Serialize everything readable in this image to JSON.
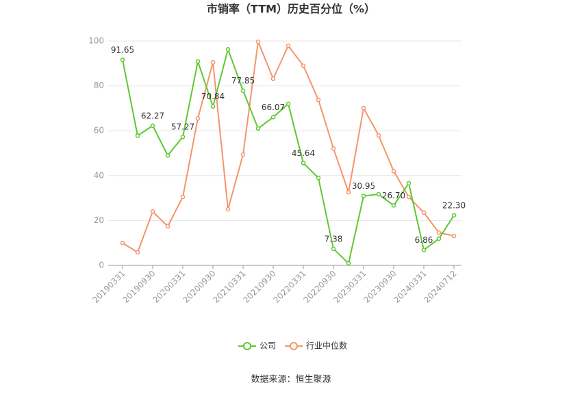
{
  "chart_data": {
    "type": "line",
    "title": "市销率（TTM）历史百分位（%）",
    "source": "数据来源：恒生聚源",
    "categories": [
      "20190331",
      null,
      "20190930",
      null,
      "20200331",
      null,
      "20200930",
      null,
      "20210331",
      null,
      "20210930",
      null,
      "20220331",
      null,
      "20220930",
      null,
      "20230331",
      null,
      "20230930",
      null,
      "20240331",
      null,
      "20240712"
    ],
    "series": [
      {
        "name": "公司",
        "color": "#5cc92f",
        "values": [
          91.65,
          57.8,
          62.27,
          49,
          57.27,
          90.9,
          70.84,
          96.3,
          77.85,
          61,
          66.07,
          72,
          45.64,
          39,
          7.38,
          0.9,
          30.95,
          31.7,
          26.7,
          36.6,
          6.86,
          11.9,
          22.3
        ],
        "value_labels": [
          "91.65",
          null,
          "62.27",
          null,
          "57.27",
          null,
          "70.84",
          null,
          "77.85",
          null,
          "66.07",
          null,
          "45.64",
          null,
          "7.38",
          null,
          "30.95",
          null,
          "26.70",
          null,
          "6.86",
          null,
          "22.30"
        ]
      },
      {
        "name": "行业中位数",
        "color": "#f5936b",
        "values": [
          10,
          5.8,
          24,
          17.4,
          30.5,
          65.5,
          90.5,
          25,
          49.4,
          99.7,
          83.2,
          97.9,
          89,
          73.8,
          52.1,
          32.6,
          70.1,
          57.9,
          42,
          30.5,
          23.5,
          14.6,
          13.1
        ]
      }
    ],
    "ylim": [
      0,
      100
    ],
    "yticks": [
      0,
      20,
      40,
      60,
      80,
      100
    ],
    "grid": true,
    "legend": "bottom"
  }
}
